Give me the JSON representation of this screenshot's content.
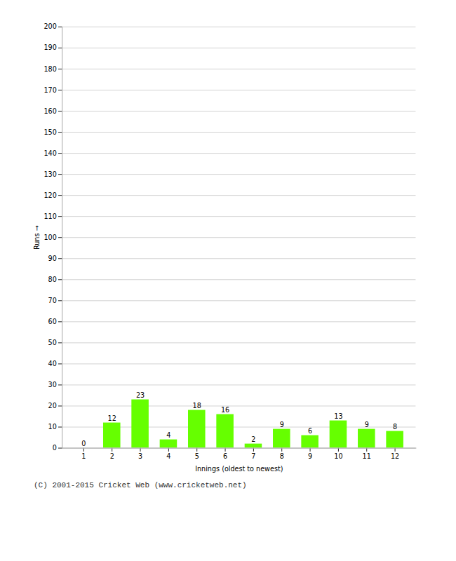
{
  "chart_data": {
    "type": "bar",
    "xlabel": "Innings (oldest to newest)",
    "ylabel": "Runs",
    "categories": [
      1,
      2,
      3,
      4,
      5,
      6,
      7,
      8,
      9,
      10,
      11,
      12
    ],
    "values": [
      0,
      12,
      23,
      4,
      18,
      16,
      2,
      9,
      6,
      13,
      9,
      8
    ],
    "color": "#66ff00",
    "ylim": [
      0,
      200
    ],
    "yticks": [
      0,
      10,
      20,
      30,
      40,
      50,
      60,
      70,
      80,
      90,
      100,
      110,
      120,
      130,
      140,
      150,
      160,
      170,
      180,
      190,
      200
    ],
    "grid": true,
    "data_labels": true,
    "annotations": [
      "(C) 2001-2015 Cricket Web (www.cricketweb.net)"
    ]
  }
}
